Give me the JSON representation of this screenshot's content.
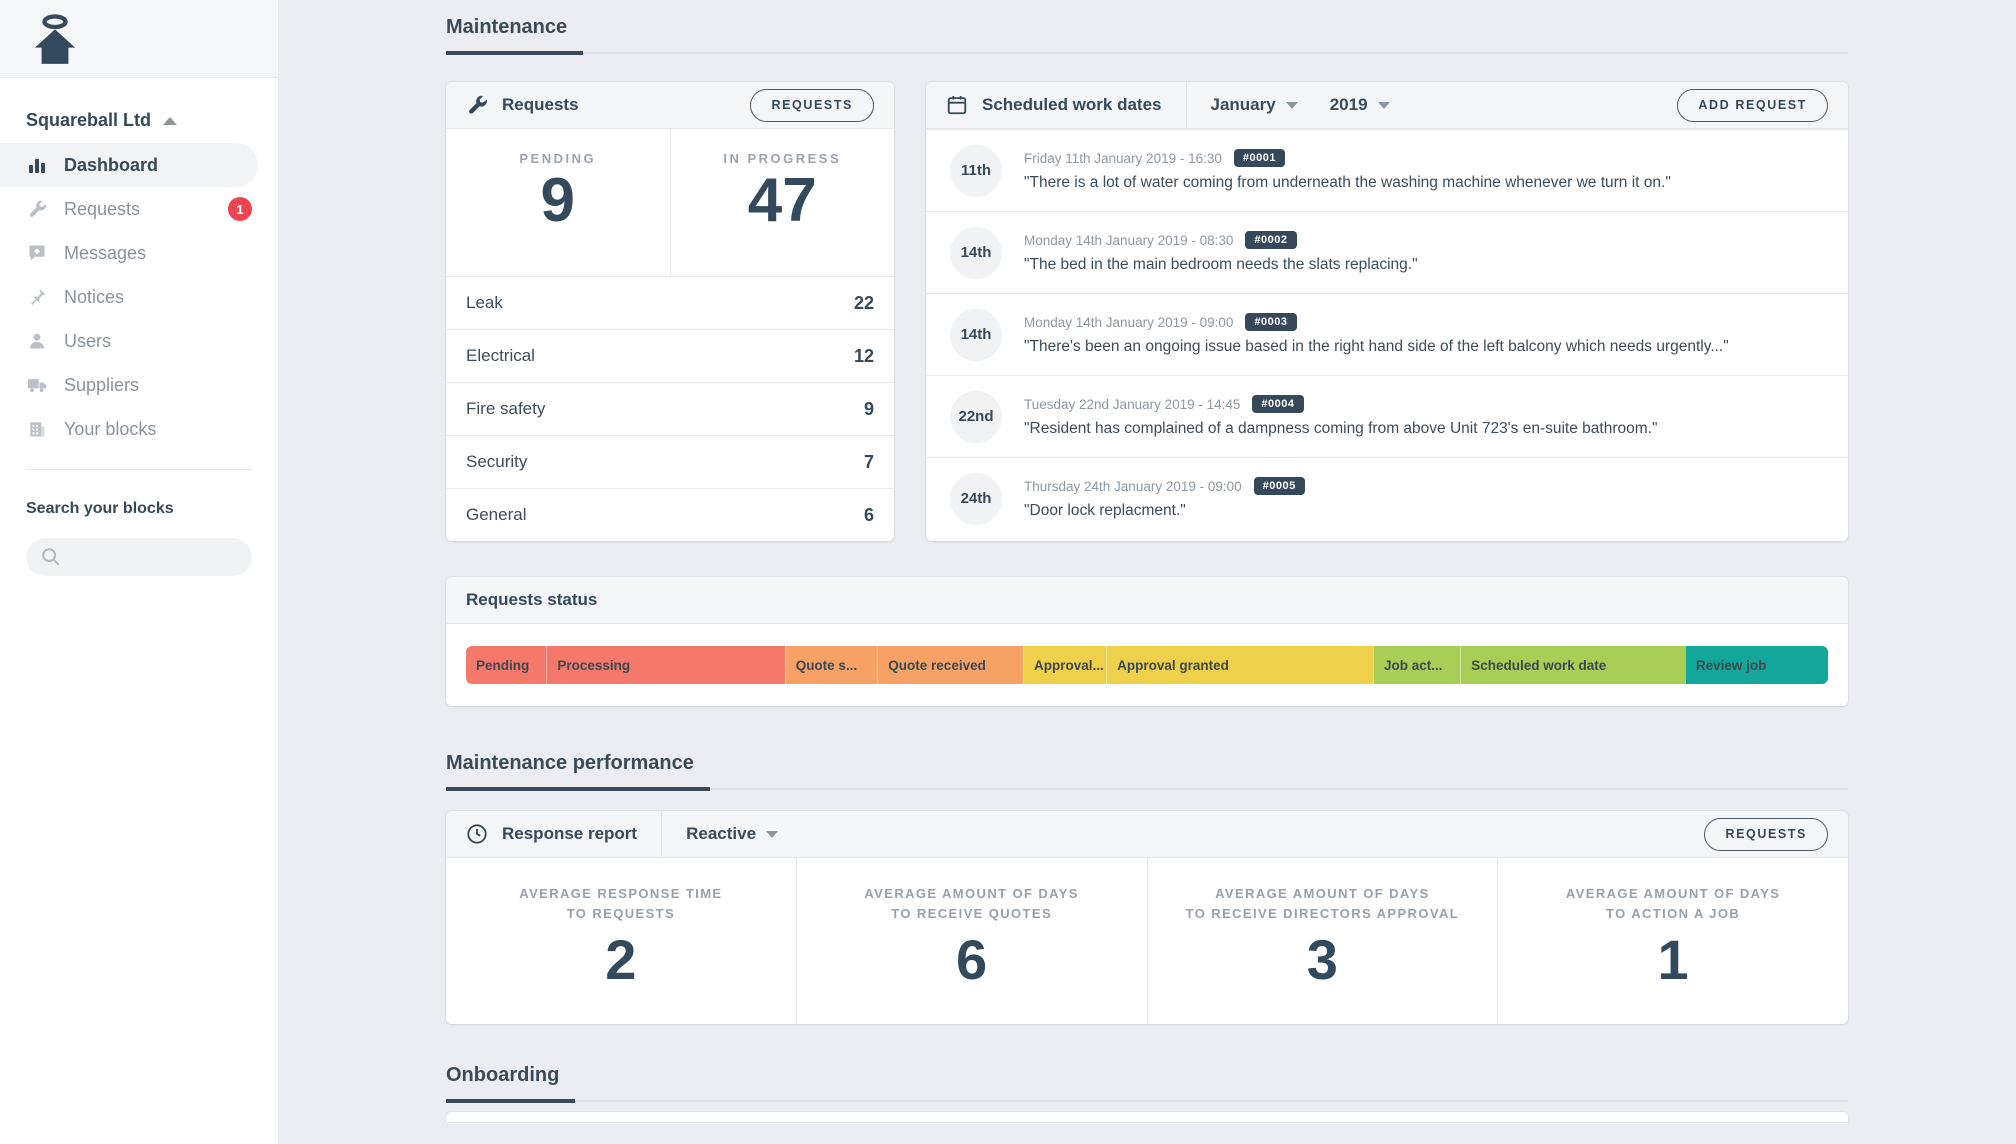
{
  "colors": {
    "accent_navy": "#35495c",
    "badge_red": "#ee4450"
  },
  "sidebar": {
    "company": "Squareball Ltd",
    "items": [
      {
        "label": "Dashboard",
        "icon": "bar-chart-icon",
        "active": true
      },
      {
        "label": "Requests",
        "icon": "wrench-icon",
        "badge": "1"
      },
      {
        "label": "Messages",
        "icon": "chat-icon"
      },
      {
        "label": "Notices",
        "icon": "pin-icon"
      },
      {
        "label": "Users",
        "icon": "user-icon"
      },
      {
        "label": "Suppliers",
        "icon": "truck-icon"
      },
      {
        "label": "Your blocks",
        "icon": "building-icon"
      }
    ],
    "search_heading": "Search your blocks",
    "search_placeholder": ""
  },
  "sections": {
    "maintenance": "Maintenance",
    "performance": "Maintenance performance",
    "onboarding": "Onboarding"
  },
  "requests_card": {
    "title": "Requests",
    "button": "REQUESTS",
    "pending_label": "PENDING",
    "pending_value": "9",
    "in_progress_label": "IN PROGRESS",
    "in_progress_value": "47",
    "categories": [
      {
        "label": "Leak",
        "value": "22"
      },
      {
        "label": "Electrical",
        "value": "12"
      },
      {
        "label": "Fire safety",
        "value": "9"
      },
      {
        "label": "Security",
        "value": "7"
      },
      {
        "label": "General",
        "value": "6"
      }
    ]
  },
  "schedule_card": {
    "title": "Scheduled work dates",
    "month": "January",
    "year": "2019",
    "button": "ADD REQUEST",
    "items": [
      {
        "day": "11th",
        "date": "Friday 11th January 2019 - 16:30",
        "ref": "#0001",
        "quote": "\"There is a lot of water coming from underneath the washing machine whenever we turn it on.\""
      },
      {
        "day": "14th",
        "date": "Monday 14th January 2019 - 08:30",
        "ref": "#0002",
        "quote": "\"The bed in the main bedroom needs the slats replacing.\""
      },
      {
        "day": "14th",
        "date": "Monday 14th January 2019 - 09:00",
        "ref": "#0003",
        "quote": "\"There's been an ongoing issue based in the right hand side of the left balcony which needs urgently...\""
      },
      {
        "day": "22nd",
        "date": "Tuesday 22nd January 2019 - 14:45",
        "ref": "#0004",
        "quote": "\"Resident has complained of a dampness coming from above Unit 723's en-suite bathroom.\""
      },
      {
        "day": "24th",
        "date": "Thursday 24th January 2019 - 09:00",
        "ref": "#0005",
        "quote": "\"Door lock replacment.\""
      }
    ]
  },
  "status_card": {
    "title": "Requests status",
    "segments": [
      {
        "label": "Pending",
        "color": "#f4796b",
        "width_pct": 5.9
      },
      {
        "label": "Processing",
        "color": "#f4796b",
        "width_pct": 17.5
      },
      {
        "label": "Quote s...",
        "color": "#f8a166",
        "width_pct": 6.8
      },
      {
        "label": "Quote received",
        "color": "#f8a166",
        "width_pct": 10.7
      },
      {
        "label": "Approval...",
        "color": "#efd04b",
        "width_pct": 6.1
      },
      {
        "label": "Approval granted",
        "color": "#efd04b",
        "width_pct": 19.6
      },
      {
        "label": "Job act...",
        "color": "#a8ce55",
        "width_pct": 6.4
      },
      {
        "label": "Scheduled work date",
        "color": "#a8ce55",
        "width_pct": 16.5
      },
      {
        "label": "Review job",
        "color": "#12a79a",
        "width_pct": 10.5
      }
    ]
  },
  "response_card": {
    "title": "Response report",
    "filter": "Reactive",
    "button": "REQUESTS",
    "metrics": [
      {
        "label_line1": "AVERAGE RESPONSE TIME",
        "label_line2": "TO REQUESTS",
        "value": "2"
      },
      {
        "label_line1": "AVERAGE AMOUNT OF DAYS",
        "label_line2": "TO RECEIVE QUOTES",
        "value": "6"
      },
      {
        "label_line1": "AVERAGE AMOUNT OF DAYS",
        "label_line2": "TO RECEIVE DIRECTORS APPROVAL",
        "value": "3"
      },
      {
        "label_line1": "AVERAGE AMOUNT OF DAYS",
        "label_line2": "TO ACTION A JOB",
        "value": "1"
      }
    ]
  }
}
